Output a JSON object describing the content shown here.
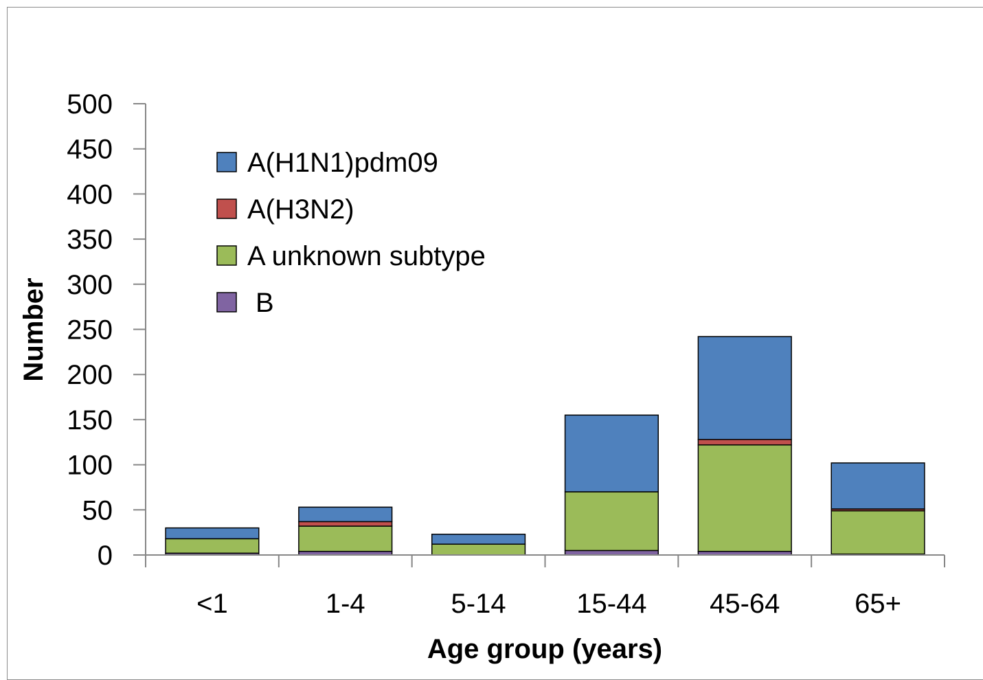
{
  "chart_data": {
    "type": "bar",
    "stacked": true,
    "title": "",
    "xlabel": "Age group (years)",
    "ylabel": "Number",
    "ylim": [
      0,
      500
    ],
    "yticks": [
      0,
      50,
      100,
      150,
      200,
      250,
      300,
      350,
      400,
      450,
      500
    ],
    "categories": [
      "<1",
      "1-4",
      "5-14",
      "15-44",
      "45-64",
      "65+"
    ],
    "series": [
      {
        "name": "B",
        "color": "#8064A2",
        "values": [
          2,
          4,
          0,
          5,
          4,
          1
        ]
      },
      {
        "name": "A unknown subtype",
        "color": "#9BBB59",
        "values": [
          16,
          28,
          12,
          65,
          118,
          48
        ]
      },
      {
        "name": "A(H3N2)",
        "color": "#C0504D",
        "values": [
          0,
          5,
          0,
          0,
          6,
          2
        ]
      },
      {
        "name": "A(H1N1)pdm09",
        "color": "#4F81BD",
        "values": [
          12,
          16,
          11,
          85,
          114,
          51
        ]
      }
    ],
    "legend_order": [
      "A(H1N1)pdm09",
      "A(H3N2)",
      "A unknown subtype",
      "B"
    ],
    "legend_position": "top-left",
    "grid": false
  }
}
